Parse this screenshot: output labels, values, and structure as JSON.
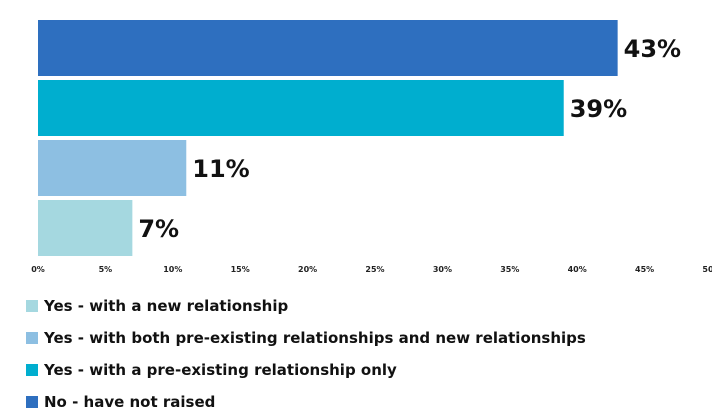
{
  "chart_data": {
    "type": "bar",
    "orientation": "horizontal",
    "xlim": [
      0,
      50
    ],
    "x_ticks": [
      "0%",
      "5%",
      "10%",
      "15%",
      "20%",
      "25%",
      "30%",
      "35%",
      "40%",
      "45%",
      "50%"
    ],
    "grid": false,
    "legend_position": "bottom",
    "bars": [
      {
        "category": "No - have not raised",
        "value": 43,
        "label": "43%",
        "color": "#2E6FBF"
      },
      {
        "category": "Yes - with a pre-existing relationship only",
        "value": 39,
        "label": "39%",
        "color": "#00AECF"
      },
      {
        "category": "Yes - with both pre-existing relationships and new relationships",
        "value": 11,
        "label": "11%",
        "color": "#8DBFE2"
      },
      {
        "category": "Yes - with a new relationship",
        "value": 7,
        "label": "7%",
        "color": "#A5D8E0"
      }
    ]
  },
  "legend": {
    "items": [
      {
        "label": "Yes - with a new relationship",
        "color": "#A5D8E0"
      },
      {
        "label": "Yes - with both pre-existing relationships and new relationships",
        "color": "#8DBFE2"
      },
      {
        "label": "Yes - with a pre-existing relationship only",
        "color": "#00AECF"
      },
      {
        "label": "No - have not raised",
        "color": "#2E6FBF"
      }
    ]
  }
}
